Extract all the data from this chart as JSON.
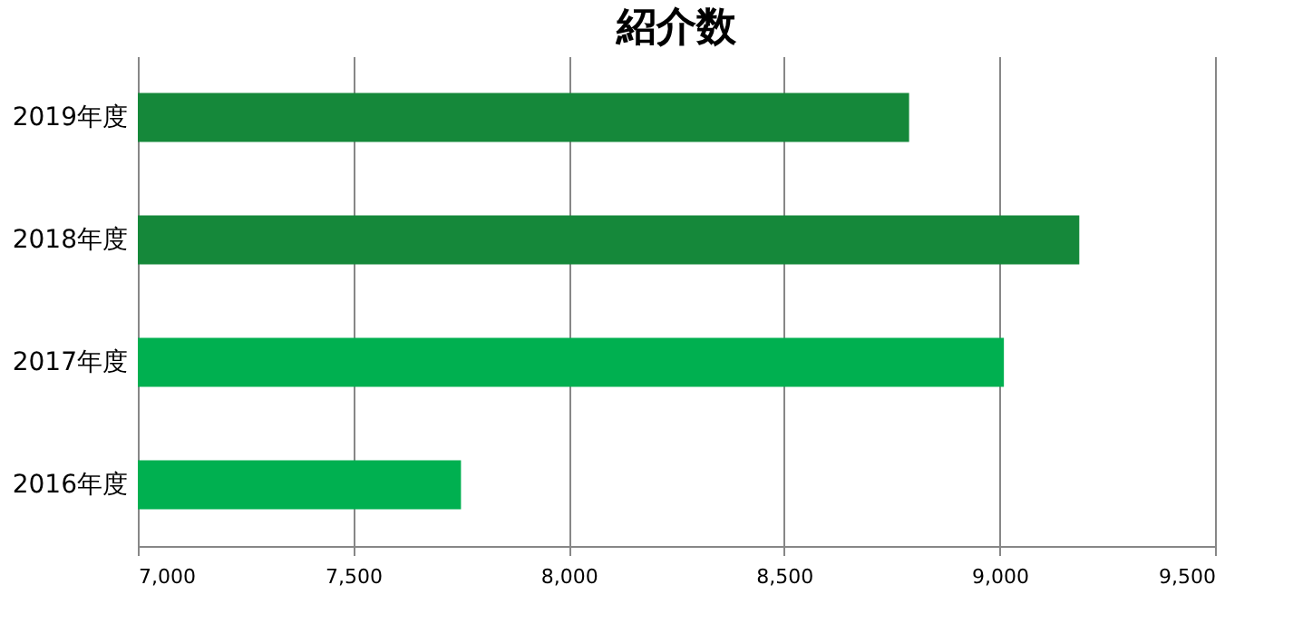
{
  "chart_data": {
    "type": "bar",
    "orientation": "horizontal",
    "title": "紹介数",
    "categories": [
      "2019年度",
      "2018年度",
      "2017年度",
      "2016年度"
    ],
    "values": [
      8790,
      9185,
      9010,
      7750
    ],
    "colors": [
      "#15883a",
      "#15883a",
      "#00b050",
      "#00b050"
    ],
    "xlim": [
      7000,
      9500
    ],
    "xticks": [
      {
        "value": 7000,
        "label": "7,000"
      },
      {
        "value": 7500,
        "label": "7,500"
      },
      {
        "value": 8000,
        "label": "8,000"
      },
      {
        "value": 8500,
        "label": "8,500"
      },
      {
        "value": 9000,
        "label": "9,000"
      },
      {
        "value": 9500,
        "label": "9,500"
      }
    ],
    "grid": "x"
  }
}
